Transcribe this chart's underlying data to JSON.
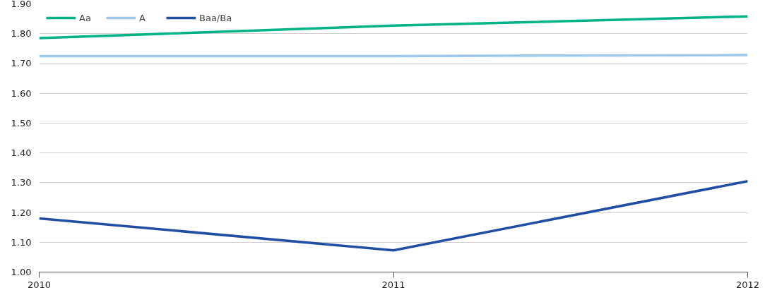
{
  "chart_data": {
    "type": "line",
    "x": [
      2010,
      2011,
      2012
    ],
    "xlim": [
      2010,
      2012
    ],
    "xticks": [
      2010,
      2011,
      2012
    ],
    "ylim": [
      1.0,
      1.9
    ],
    "yticks": [
      {
        "value": 1.0,
        "label": "1.00"
      },
      {
        "value": 1.1,
        "label": "1.10"
      },
      {
        "value": 1.2,
        "label": "1.20"
      },
      {
        "value": 1.3,
        "label": "1.30"
      },
      {
        "value": 1.4,
        "label": "1.40"
      },
      {
        "value": 1.5,
        "label": "1.50"
      },
      {
        "value": 1.6,
        "label": "1.60"
      },
      {
        "value": 1.7,
        "label": "1.70"
      },
      {
        "value": 1.8,
        "label": "1.80"
      },
      {
        "value": 1.9,
        "label": "1.90"
      }
    ],
    "grid": "y",
    "legend": "top left",
    "marker": "none",
    "line_style": "solid",
    "series": [
      {
        "name": "Aa",
        "color": "#00b386",
        "values": [
          1.785,
          1.827,
          1.858
        ]
      },
      {
        "name": "A",
        "color": "#9dc8eb",
        "values": [
          1.725,
          1.725,
          1.728
        ]
      },
      {
        "name": "Baa/Ba",
        "color": "#1f4ea3",
        "values": [
          1.18,
          1.073,
          1.305
        ]
      }
    ]
  }
}
